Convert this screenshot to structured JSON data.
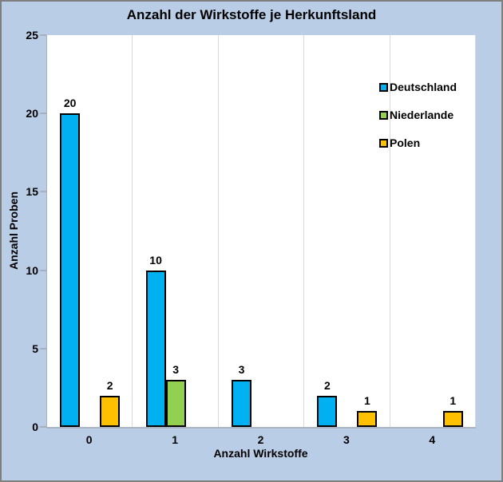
{
  "chart_data": {
    "type": "bar",
    "title": "Anzahl der Wirkstoffe je Herkunftsland",
    "xlabel": "Anzahl Wirkstoffe",
    "ylabel": "Anzahl Proben",
    "categories": [
      "0",
      "1",
      "2",
      "3",
      "4"
    ],
    "series": [
      {
        "name": "Deutschland",
        "color": "#00b0f0",
        "values": [
          20,
          10,
          3,
          2,
          0
        ]
      },
      {
        "name": "Niederlande",
        "color": "#92d050",
        "values": [
          0,
          3,
          0,
          0,
          0
        ]
      },
      {
        "name": "Polen",
        "color": "#ffc000",
        "values": [
          2,
          0,
          0,
          1,
          1
        ]
      }
    ],
    "ylim": [
      0,
      25
    ],
    "yticks": [
      0,
      5,
      10,
      15,
      20,
      25
    ],
    "data_labels": true,
    "grid": "vertical-category-boundaries",
    "legend_position": "inside-top-right"
  },
  "colors": {
    "background": "#bacde6",
    "plot_background": "#ffffff",
    "frame_border": "#7f7f7f",
    "axis_line": "#a6b0be",
    "gridline": "#d9d9d9",
    "bar_border": "#000000",
    "text": "#000000"
  }
}
